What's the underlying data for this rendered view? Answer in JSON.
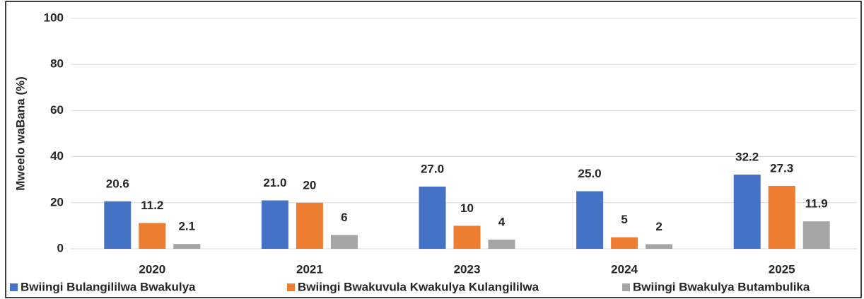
{
  "chart_data": {
    "type": "bar",
    "y_label": "Mweelo waBana (%)",
    "categories": [
      "2020",
      "2021",
      "2023",
      "2024",
      "2025"
    ],
    "series": [
      {
        "name": "Bwiingi Bulangililwa Bwakulya",
        "color": "#4472c4",
        "values": [
          20.6,
          21.0,
          27.0,
          25.0,
          32.2
        ],
        "value_labels": [
          "20.6",
          "21.0",
          "27.0",
          "25.0",
          "32.2"
        ]
      },
      {
        "name": "Bwiingi Bwakuvula Kwakulya Kulangililwa",
        "color": "#ed7d31",
        "values": [
          11.2,
          20,
          10,
          5,
          27.3
        ]
      },
      {
        "name": "Bwiingi Bwakulya Butambulika",
        "color": "#a5a5a5",
        "values": [
          2.1,
          6,
          4,
          2,
          11.9
        ]
      }
    ],
    "ylim": [
      0,
      100
    ],
    "yticks": [
      0,
      20,
      40,
      60,
      80,
      100
    ],
    "grid": true,
    "legend": "bottom"
  }
}
